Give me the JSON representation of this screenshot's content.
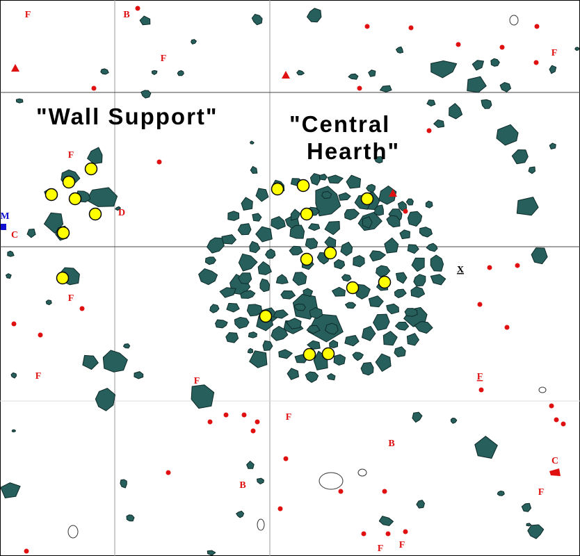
{
  "labels": {
    "wall_support": "\"Wall Support\"",
    "central_hearth": [
      "\"Central",
      "Hearth\""
    ]
  },
  "markers": [
    "F",
    "B",
    "F",
    "F",
    "F",
    "D",
    "C",
    "M",
    "F",
    "F",
    "F",
    "F",
    "B",
    "B",
    "C",
    "F",
    "F",
    "F",
    "F",
    "X"
  ]
}
